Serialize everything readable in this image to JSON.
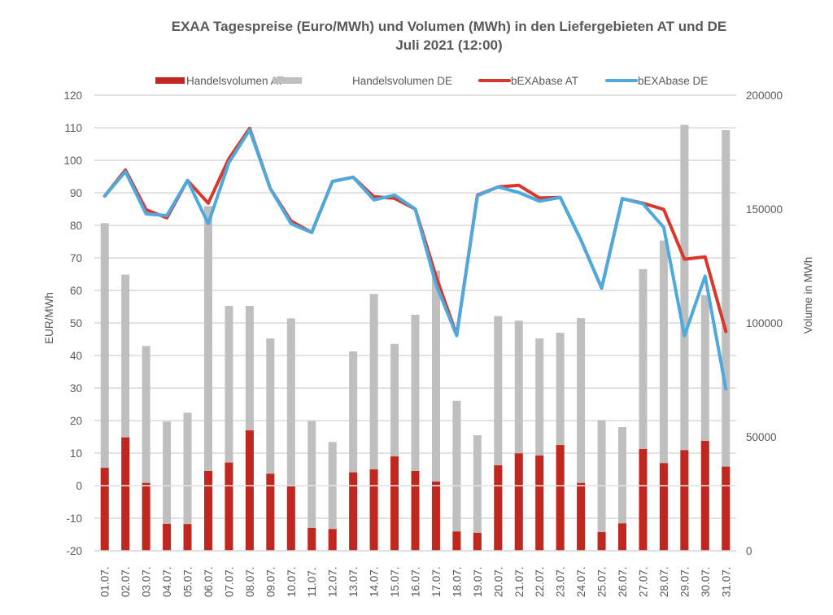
{
  "chart_data": {
    "type": "bar",
    "combo": "bar+line",
    "title": "EXAA Tagespreise (Euro/MWh) und Volumen (MWh) in den Liefergebieten AT und DE",
    "subtitle": "Juli 2021 (12:00)",
    "ylabel": "EUR/MWh",
    "y2label": "Volume in MWh",
    "xlabel": "",
    "ylim": [
      -20,
      120
    ],
    "y_ticks": [
      -20,
      -10,
      0,
      10,
      20,
      30,
      40,
      50,
      60,
      70,
      80,
      90,
      100,
      110,
      120
    ],
    "y2lim": [
      0,
      200000
    ],
    "y2_ticks": [
      0,
      50000,
      100000,
      150000,
      200000
    ],
    "grid": true,
    "legend_position": "top",
    "categories": [
      "01.07.",
      "02.07.",
      "03.07.",
      "04.07.",
      "05.07.",
      "06.07.",
      "07.07.",
      "08.07.",
      "09.07.",
      "10.07.",
      "11.07.",
      "12.07.",
      "13.07.",
      "14.07.",
      "15.07.",
      "16.07.",
      "17.07.",
      "18.07.",
      "19.07.",
      "20.07.",
      "21.07.",
      "22.07.",
      "23.07.",
      "24.07.",
      "25.07.",
      "26.07.",
      "27.07.",
      "28.07.",
      "29.07.",
      "30.07.",
      "31.07."
    ],
    "series": [
      {
        "name": "Handelsvolumen AT",
        "type": "bar",
        "axis": "right",
        "color": "#c0281f",
        "values": [
          36400,
          49750,
          29750,
          11800,
          11700,
          35000,
          38700,
          52850,
          33800,
          28700,
          10000,
          9500,
          34400,
          35700,
          41400,
          35000,
          30350,
          8450,
          7850,
          37500,
          42750,
          41800,
          46400,
          29750,
          8200,
          12000,
          44650,
          38450,
          44150,
          48200,
          36900
        ]
      },
      {
        "name": "Handelsvolumen DE",
        "type": "bar",
        "axis": "right",
        "color": "#bfbfbf",
        "values": [
          143800,
          121200,
          89900,
          56700,
          60600,
          151300,
          107500,
          107500,
          93200,
          102000,
          56900,
          47750,
          87500,
          112750,
          90800,
          103600,
          123000,
          65800,
          50700,
          103000,
          101000,
          93200,
          95700,
          102100,
          57250,
          54300,
          123600,
          136200,
          187000,
          112250,
          184650
        ]
      },
      {
        "name": "bEXAbase AT",
        "type": "line",
        "axis": "left",
        "color": "#d9372b",
        "values": [
          89.0,
          97.0,
          84.8,
          82.3,
          93.8,
          86.8,
          100.5,
          109.8,
          91.3,
          81.3,
          77.8,
          93.5,
          94.8,
          88.8,
          88.3,
          85.0,
          64.3,
          46.3,
          89.3,
          91.8,
          92.3,
          88.4,
          88.6,
          75.5,
          60.7,
          88.2,
          86.8,
          84.9,
          69.6,
          70.3,
          47.4
        ]
      },
      {
        "name": "bEXAbase DE",
        "type": "line",
        "axis": "left",
        "color": "#4ea9dc",
        "values": [
          89.0,
          96.5,
          83.5,
          83.0,
          93.8,
          80.5,
          99.3,
          109.3,
          91.3,
          80.5,
          77.8,
          93.5,
          94.8,
          87.8,
          89.3,
          85.0,
          61.8,
          46.1,
          89.1,
          91.8,
          90.1,
          87.4,
          88.6,
          75.5,
          60.7,
          88.2,
          86.6,
          79.4,
          46.1,
          64.4,
          29.7
        ]
      }
    ]
  }
}
